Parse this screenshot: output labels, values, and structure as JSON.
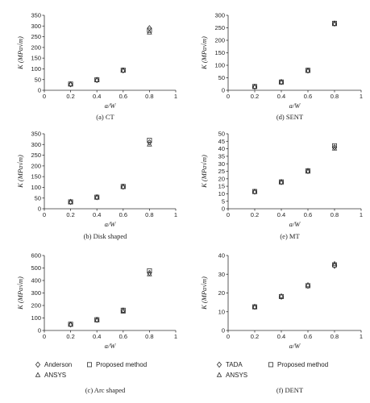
{
  "chart_data": [
    {
      "id": "CT",
      "type": "scatter",
      "caption": "(a) CT",
      "ylabel": "K (MPa√m)",
      "xlabel": "a/W",
      "xlim": [
        0,
        1
      ],
      "xticks": [
        0,
        0.2,
        0.4,
        0.6,
        0.8,
        1
      ],
      "ylim": [
        0,
        350
      ],
      "yticks": [
        0,
        50,
        100,
        150,
        200,
        250,
        300,
        350
      ],
      "x": [
        0.2,
        0.4,
        0.6,
        0.8
      ],
      "series": [
        {
          "name": "Anderson",
          "marker": "diamond",
          "values": [
            28,
            48,
            93,
            290
          ]
        },
        {
          "name": "ANSYS",
          "marker": "triangle",
          "values": [
            28,
            48,
            92,
            270
          ]
        },
        {
          "name": "Proposed method",
          "marker": "square",
          "values": [
            29,
            49,
            94,
            280
          ]
        }
      ]
    },
    {
      "id": "SENT",
      "type": "scatter",
      "caption": "(d) SENT",
      "ylabel": "K (MPa√m)",
      "xlabel": "a/W",
      "xlim": [
        0,
        1
      ],
      "xticks": [
        0,
        0.2,
        0.4,
        0.6,
        0.8,
        1
      ],
      "ylim": [
        0,
        300
      ],
      "yticks": [
        0,
        50,
        100,
        150,
        200,
        250,
        300
      ],
      "x": [
        0.2,
        0.4,
        0.6,
        0.8
      ],
      "series": [
        {
          "name": "TADA",
          "marker": "diamond",
          "values": [
            14,
            33,
            79,
            267
          ]
        },
        {
          "name": "ANSYS",
          "marker": "triangle",
          "values": [
            14,
            32,
            78,
            265
          ]
        },
        {
          "name": "Proposed method",
          "marker": "square",
          "values": [
            15,
            33,
            80,
            268
          ]
        }
      ]
    },
    {
      "id": "Disk",
      "type": "scatter",
      "caption": "(b) Disk shaped",
      "ylabel": "K (MPa√m)",
      "xlabel": "a/W",
      "xlim": [
        0,
        1
      ],
      "xticks": [
        0,
        0.2,
        0.4,
        0.6,
        0.8,
        1
      ],
      "ylim": [
        0,
        350
      ],
      "yticks": [
        0,
        50,
        100,
        150,
        200,
        250,
        300,
        350
      ],
      "x": [
        0.2,
        0.4,
        0.6,
        0.8
      ],
      "series": [
        {
          "name": "Anderson",
          "marker": "diamond",
          "values": [
            32,
            54,
            103,
            310
          ]
        },
        {
          "name": "ANSYS",
          "marker": "triangle",
          "values": [
            31,
            53,
            102,
            300
          ]
        },
        {
          "name": "Proposed method",
          "marker": "square",
          "values": [
            32,
            54,
            104,
            320
          ]
        }
      ]
    },
    {
      "id": "MT",
      "type": "scatter",
      "caption": "(e) MT",
      "ylabel": "K (MPa√m)",
      "xlabel": "a/W",
      "xlim": [
        0,
        1
      ],
      "xticks": [
        0,
        0.2,
        0.4,
        0.6,
        0.8,
        1
      ],
      "ylim": [
        0,
        50
      ],
      "yticks": [
        0,
        5,
        10,
        15,
        20,
        25,
        30,
        35,
        40,
        45,
        50
      ],
      "x": [
        0.2,
        0.4,
        0.6,
        0.8
      ],
      "series": [
        {
          "name": "TADA",
          "marker": "diamond",
          "values": [
            11.4,
            17.8,
            25.2,
            41.0
          ]
        },
        {
          "name": "ANSYS",
          "marker": "triangle",
          "values": [
            11.3,
            17.6,
            24.8,
            40.2
          ]
        },
        {
          "name": "Proposed method",
          "marker": "square",
          "values": [
            11.5,
            17.9,
            25.3,
            42.0
          ]
        }
      ]
    },
    {
      "id": "Arc",
      "type": "scatter",
      "caption": "(c) Arc shaped",
      "ylabel": "K (MPa√m)",
      "xlabel": "a/W",
      "xlim": [
        0,
        1
      ],
      "xticks": [
        0,
        0.2,
        0.4,
        0.6,
        0.8,
        1
      ],
      "ylim": [
        0,
        600
      ],
      "yticks": [
        0,
        100,
        200,
        300,
        400,
        500,
        600
      ],
      "x": [
        0.2,
        0.4,
        0.6,
        0.8
      ],
      "series": [
        {
          "name": "Anderson",
          "marker": "diamond",
          "values": [
            48,
            85,
            160,
            460
          ]
        },
        {
          "name": "ANSYS",
          "marker": "triangle",
          "values": [
            47,
            82,
            152,
            450
          ]
        },
        {
          "name": "Proposed method",
          "marker": "square",
          "values": [
            50,
            86,
            162,
            478
          ]
        }
      ]
    },
    {
      "id": "DENT",
      "type": "scatter",
      "caption": "(f) DENT",
      "ylabel": "K (MPa√m)",
      "xlabel": "a/W",
      "xlim": [
        0,
        1
      ],
      "xticks": [
        0,
        0.2,
        0.4,
        0.6,
        0.8,
        1
      ],
      "ylim": [
        0,
        40
      ],
      "yticks": [
        0,
        10,
        20,
        30,
        40
      ],
      "x": [
        0.2,
        0.4,
        0.6,
        0.8
      ],
      "series": [
        {
          "name": "TADA",
          "marker": "diamond",
          "values": [
            12.6,
            18.0,
            23.8,
            34.5
          ]
        },
        {
          "name": "ANSYS",
          "marker": "triangle",
          "values": [
            12.5,
            18.3,
            24.2,
            35.5
          ]
        },
        {
          "name": "Proposed method",
          "marker": "square",
          "values": [
            12.6,
            18.1,
            23.9,
            35.0
          ]
        }
      ]
    }
  ],
  "legends": {
    "left": [
      {
        "marker": "diamond",
        "label": "Anderson"
      },
      {
        "marker": "square",
        "label": "Proposed method"
      },
      {
        "marker": "triangle",
        "label": "ANSYS"
      }
    ],
    "right": [
      {
        "marker": "diamond",
        "label": "TADA"
      },
      {
        "marker": "square",
        "label": "Proposed method"
      },
      {
        "marker": "triangle",
        "label": "ANSYS"
      }
    ]
  }
}
